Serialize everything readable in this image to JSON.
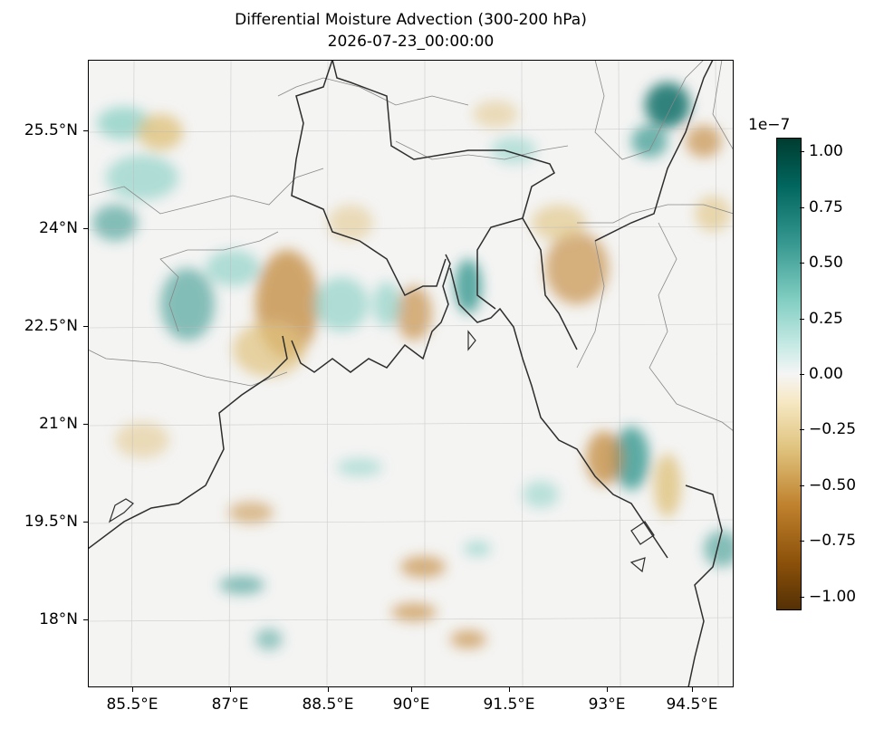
{
  "title": {
    "line1": "Differential Moisture Advection (300-200 hPa)",
    "line2": "2026-07-23_00:00:00"
  },
  "map": {
    "lon_range": [
      84.5,
      94.9
    ],
    "lat_range": [
      16.9,
      26.4
    ],
    "x_ticks": [
      "85.5°E",
      "87°E",
      "88.5°E",
      "90°E",
      "91.5°E",
      "93°E",
      "94.5°E"
    ],
    "y_ticks": [
      "25.5°N",
      "24°N",
      "22.5°N",
      "21°N",
      "19.5°N",
      "18°N"
    ],
    "gridlines": true
  },
  "colorbar": {
    "exponent": "1e−7",
    "ticks": [
      "1.00",
      "0.75",
      "0.50",
      "0.25",
      "0.00",
      "−0.25",
      "−0.50",
      "−0.75",
      "−1.00"
    ],
    "range": [
      -1.05,
      1.05
    ],
    "colormap": [
      "#543005",
      "#8c510a",
      "#bf812d",
      "#dfc27d",
      "#f6e8c3",
      "#f5f5f5",
      "#c7eae5",
      "#80cdc1",
      "#35978f",
      "#01665e",
      "#003c30"
    ]
  }
}
